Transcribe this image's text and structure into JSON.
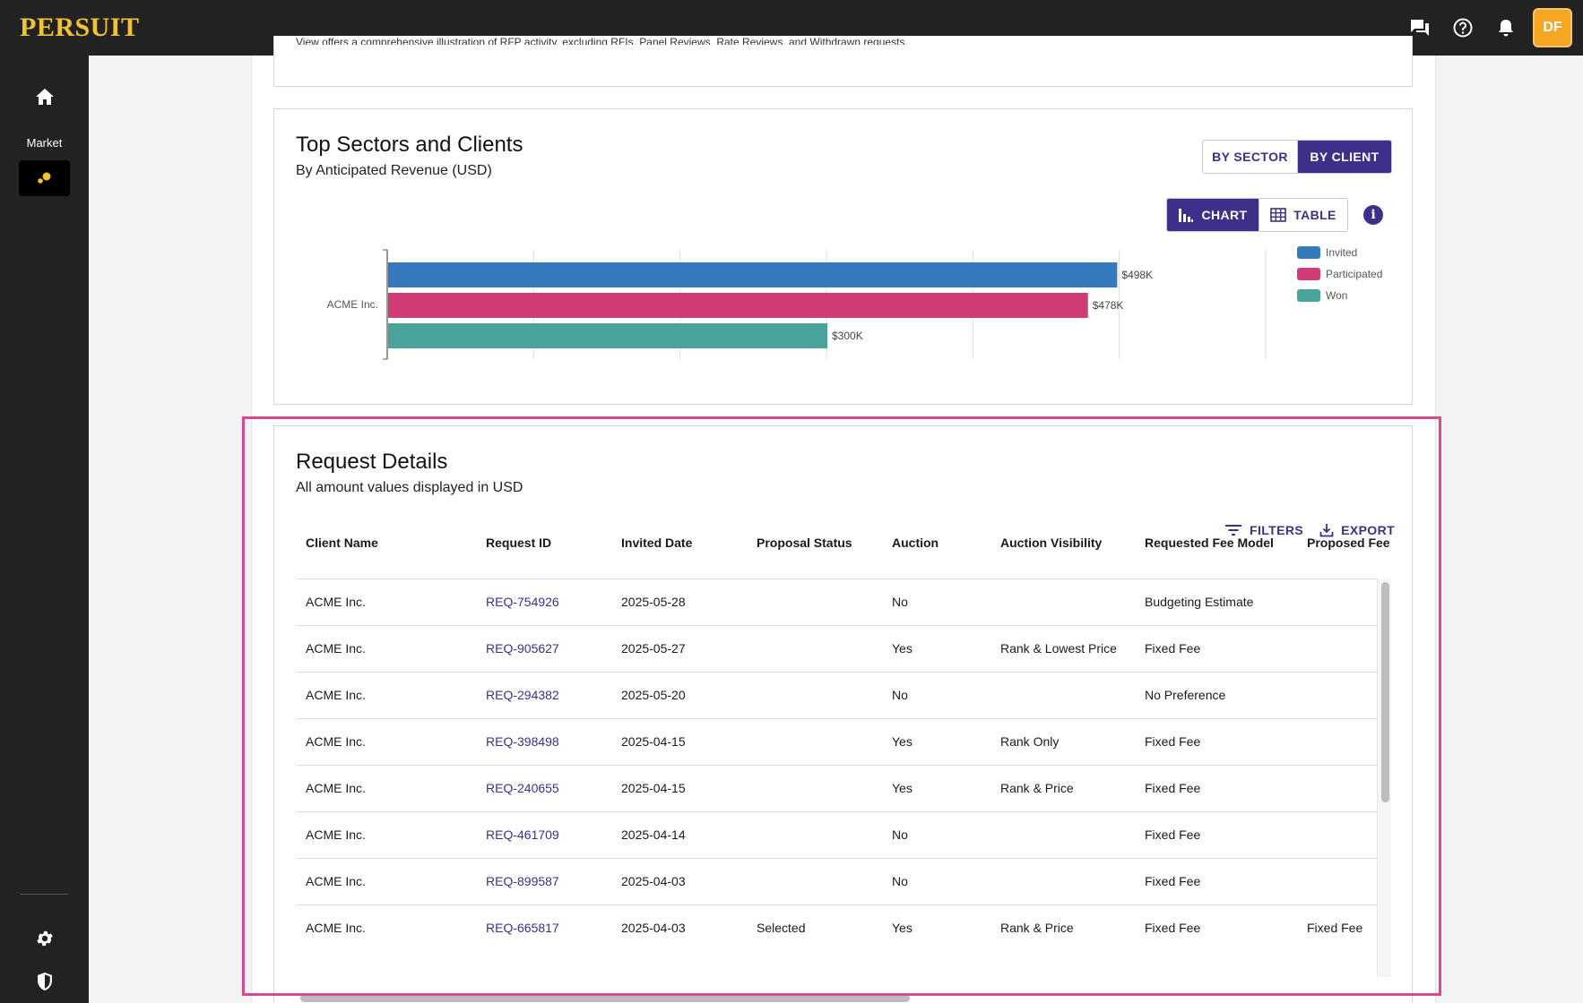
{
  "app": {
    "logo": "PERSUIT"
  },
  "header": {
    "icons": [
      "chat-icon",
      "help-icon",
      "bell-icon"
    ],
    "avatar_initials": "DF"
  },
  "sidebar": {
    "market_label": "Market"
  },
  "top_card": {
    "text": "View offers a comprehensive illustration of RFP activity, excluding RFIs, Panel Reviews, Rate Reviews, and Withdrawn requests."
  },
  "sectors": {
    "title": "Top Sectors and Clients",
    "subtitle": "By Anticipated Revenue (USD)",
    "by_sector": "BY SECTOR",
    "by_client": "BY CLIENT",
    "chart_label": "CHART",
    "table_label": "TABLE",
    "info": "i"
  },
  "chart_data": {
    "type": "bar",
    "orientation": "horizontal",
    "categories": [
      "ACME Inc."
    ],
    "series": [
      {
        "name": "Invited",
        "values": [
          498
        ],
        "label": "$498K",
        "color": "#357abd"
      },
      {
        "name": "Participated",
        "values": [
          478
        ],
        "label": "$478K",
        "color": "#d13b76"
      },
      {
        "name": "Won",
        "values": [
          300
        ],
        "label": "$300K",
        "color": "#4aa39a"
      }
    ],
    "unit": "$K",
    "xlim": [
      0,
      600
    ],
    "grid": true,
    "legend_position": "right"
  },
  "request_details": {
    "title": "Request Details",
    "subtitle": "All amount values displayed in USD",
    "filters_label": "FILTERS",
    "export_label": "EXPORT",
    "columns": [
      "Client Name",
      "Request ID",
      "Invited Date",
      "Proposal Status",
      "Auction",
      "Auction Visibility",
      "Requested Fee Model",
      "Proposed Fee"
    ],
    "rows": [
      [
        "ACME Inc.",
        "REQ-754926",
        "2025-05-28",
        "",
        "No",
        "",
        "Budgeting Estimate",
        ""
      ],
      [
        "ACME Inc.",
        "REQ-905627",
        "2025-05-27",
        "",
        "Yes",
        "Rank & Lowest Price",
        "Fixed Fee",
        ""
      ],
      [
        "ACME Inc.",
        "REQ-294382",
        "2025-05-20",
        "",
        "No",
        "",
        "No Preference",
        ""
      ],
      [
        "ACME Inc.",
        "REQ-398498",
        "2025-04-15",
        "",
        "Yes",
        "Rank Only",
        "Fixed Fee",
        ""
      ],
      [
        "ACME Inc.",
        "REQ-240655",
        "2025-04-15",
        "",
        "Yes",
        "Rank & Price",
        "Fixed Fee",
        ""
      ],
      [
        "ACME Inc.",
        "REQ-461709",
        "2025-04-14",
        "",
        "No",
        "",
        "Fixed Fee",
        ""
      ],
      [
        "ACME Inc.",
        "REQ-899587",
        "2025-04-03",
        "",
        "No",
        "",
        "Fixed Fee",
        ""
      ],
      [
        "ACME Inc.",
        "REQ-665817",
        "2025-04-03",
        "Selected",
        "Yes",
        "Rank & Price",
        "Fixed Fee",
        "Fixed Fee"
      ]
    ]
  }
}
